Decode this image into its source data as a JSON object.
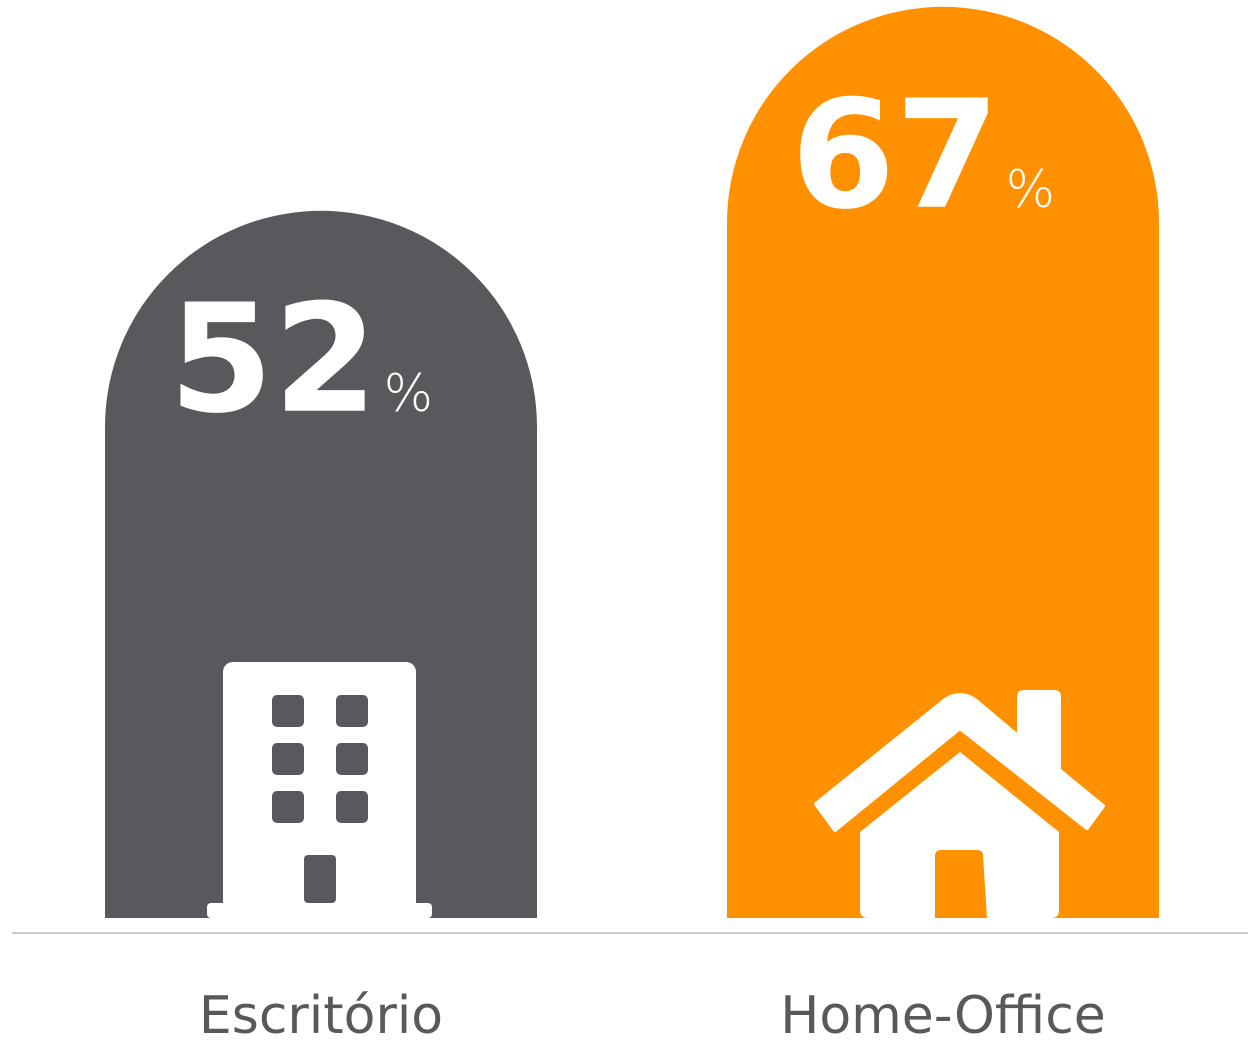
{
  "chart_data": {
    "type": "bar",
    "categories": [
      "Escritório",
      "Home-Office"
    ],
    "values": [
      52,
      67
    ],
    "unit": "%",
    "colors": [
      "#59585c",
      "#ff9000"
    ],
    "ylim": [
      0,
      70
    ]
  }
}
